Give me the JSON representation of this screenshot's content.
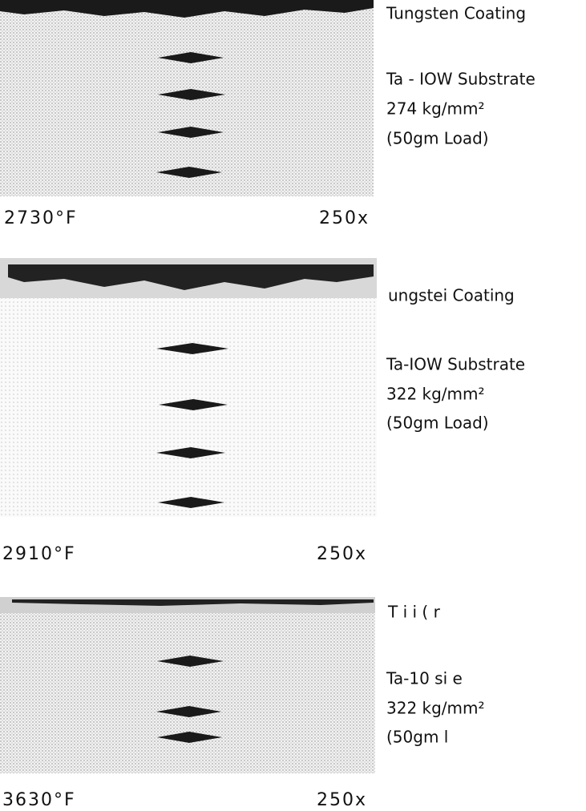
{
  "panels": [
    {
      "coating": "Tungsten Coating",
      "substrate": "Ta - IOW Substrate",
      "hardness": "274 kg/mm²",
      "load": "(50gm Load)",
      "temperature": "2730°F",
      "magnification": "250x"
    },
    {
      "coating": "ungstei Coating",
      "substrate": "Ta-IOW Substrate",
      "hardness": "322 kg/mm²",
      "load": "(50gm Load)",
      "temperature": "2910°F",
      "magnification": "250x"
    },
    {
      "coating": "T i     i (     r",
      "substrate": "Ta-10      si   e",
      "hardness": "322 kg/mm²",
      "load": "(50gm l",
      "temperature": "3630°F",
      "magnification": "250x"
    }
  ]
}
